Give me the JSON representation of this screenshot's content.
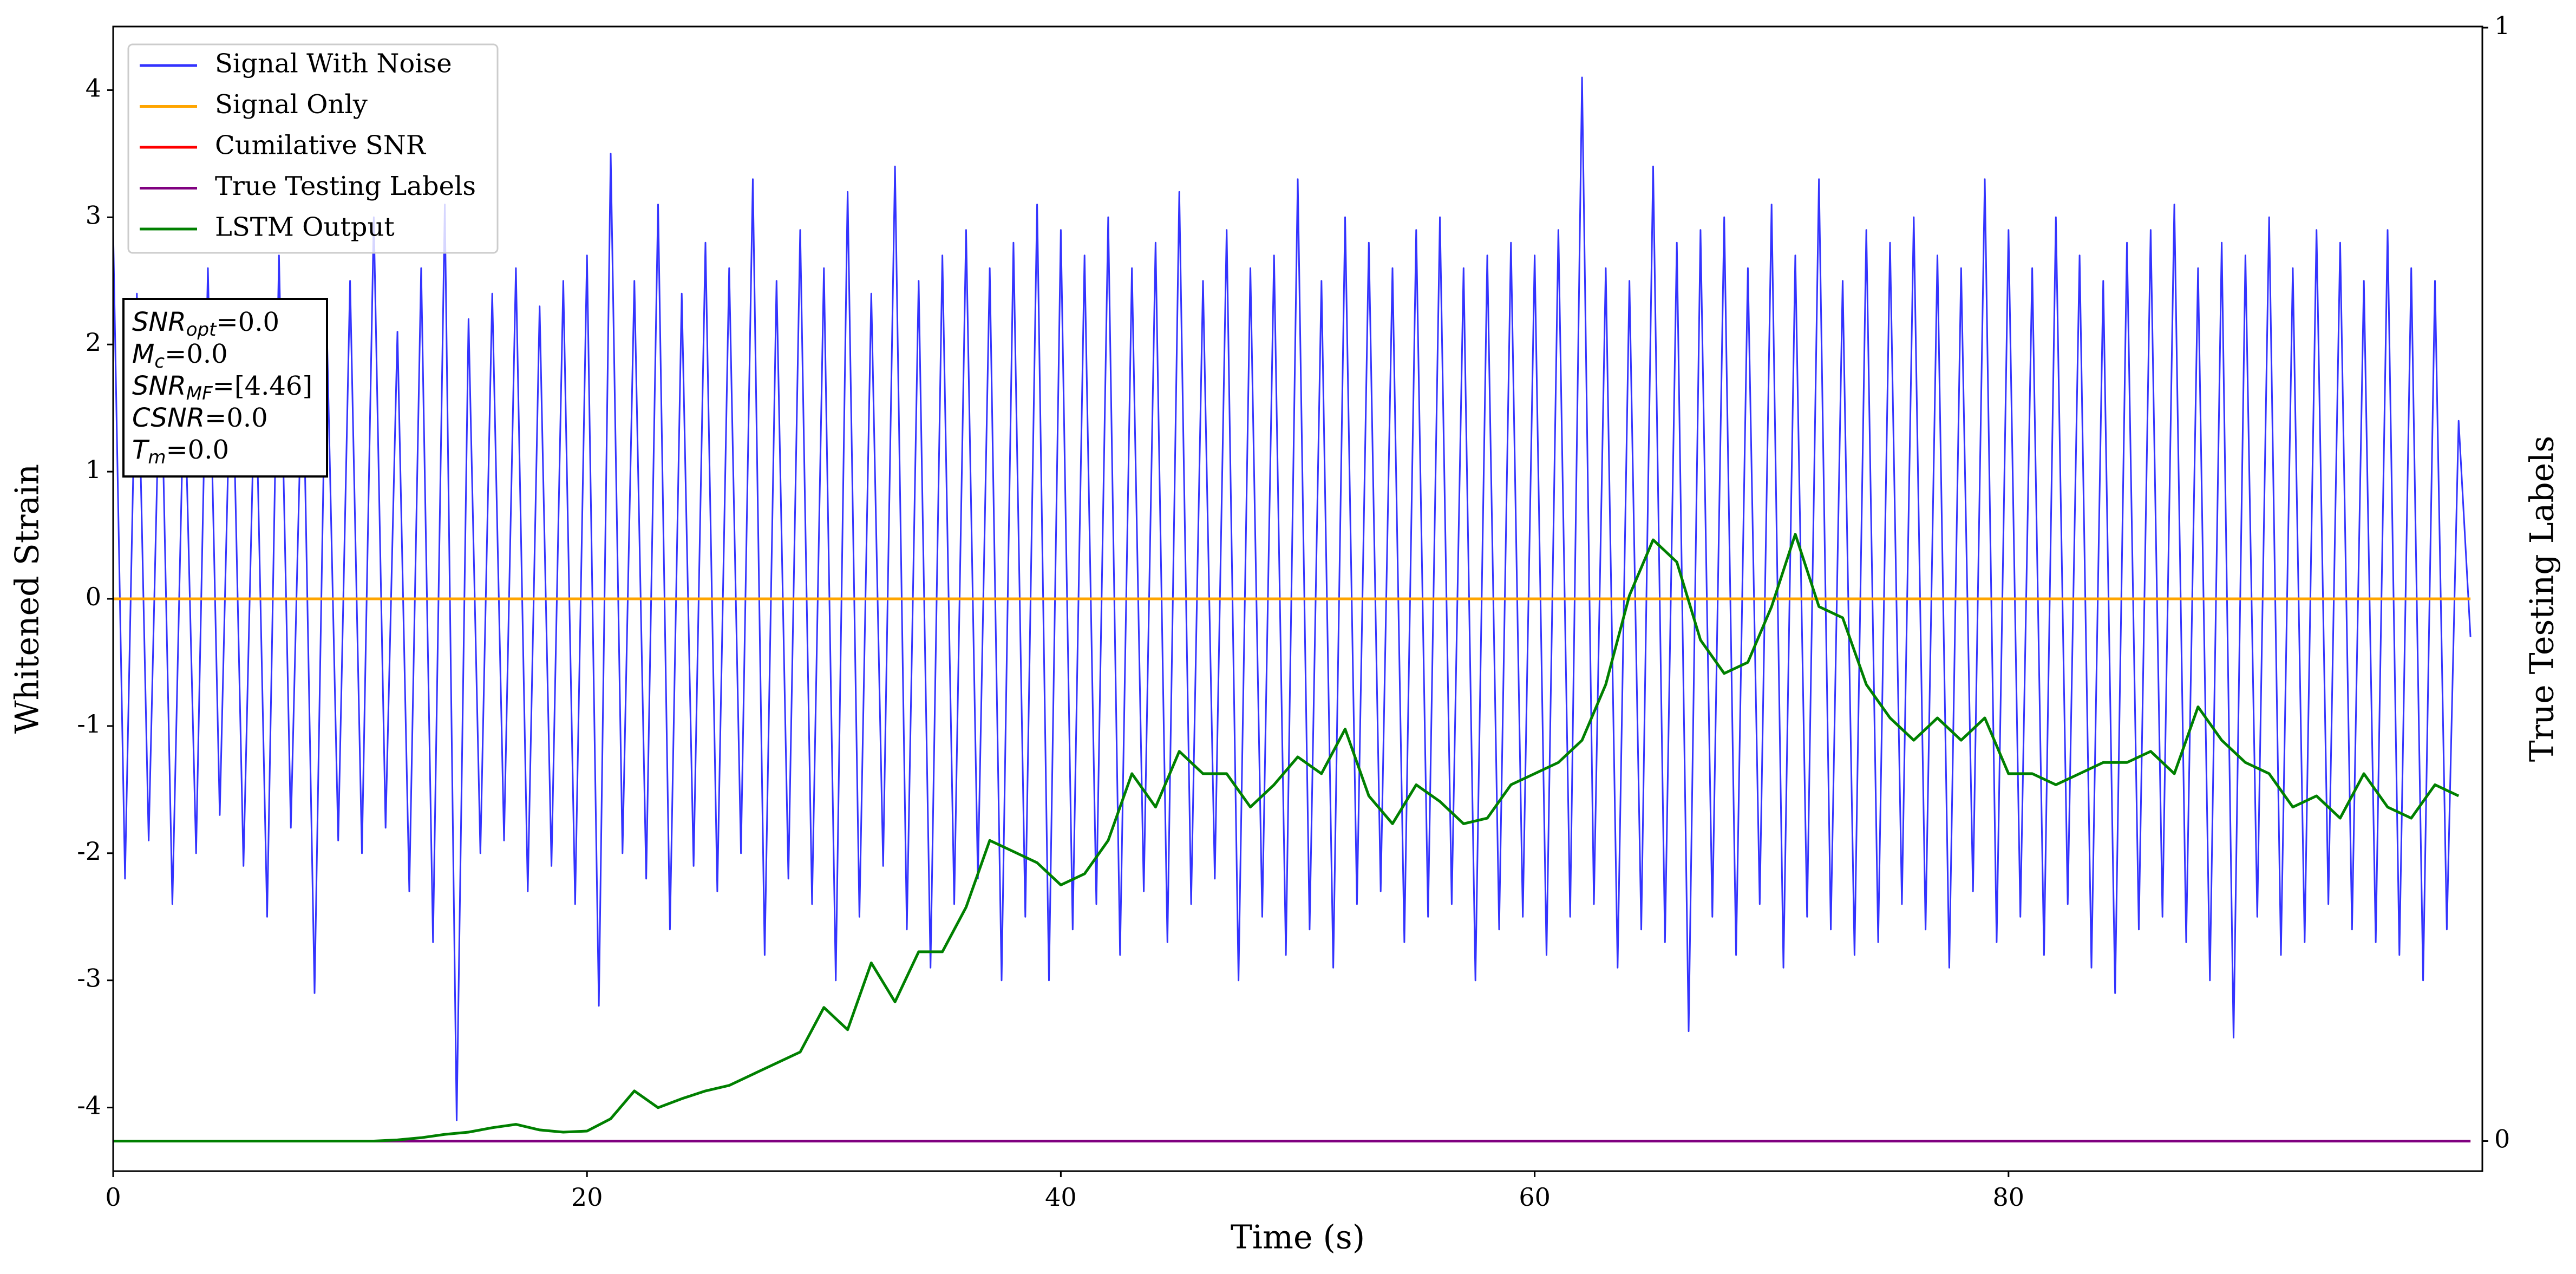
{
  "chart_data": {
    "type": "line",
    "xlabel": "Time (s)",
    "ylabel": "Whitened Strain",
    "y2label": "True Testing Labels",
    "xlim": [
      0,
      100
    ],
    "ylim": [
      -4.5,
      4.5
    ],
    "y2lim": [
      -0.027,
      1.001
    ],
    "xticks": [
      0,
      20,
      40,
      60,
      80
    ],
    "yticks": [
      -4,
      -3,
      -2,
      -1,
      0,
      1,
      2,
      3,
      4
    ],
    "y2ticks": [
      0,
      1
    ],
    "legend": "upper left",
    "annotations": [
      {
        "symbol": "SNR",
        "subscript": "opt",
        "text": "=0.0"
      },
      {
        "symbol": "M",
        "subscript": "c",
        "text": "=0.0"
      },
      {
        "symbol": "SNR",
        "subscript": "MF",
        "text": "=[4.46]"
      },
      {
        "symbol": "CSNR",
        "text": "=0.0"
      },
      {
        "symbol": "T",
        "subscript": "m",
        "text": "=0.0"
      }
    ],
    "series": [
      {
        "name": "Signal With Noise",
        "color": "#3333ff",
        "x": [
          0,
          0.5,
          1,
          1.5,
          2,
          2.5,
          3,
          3.5,
          4,
          4.5,
          5,
          5.5,
          6,
          6.5,
          7,
          7.5,
          8,
          8.5,
          9,
          9.5,
          10,
          10.5,
          11,
          11.5,
          12,
          12.5,
          13,
          13.5,
          14,
          14.5,
          15,
          15.5,
          16,
          16.5,
          17,
          17.5,
          18,
          18.5,
          19,
          19.5,
          20,
          20.5,
          21,
          21.5,
          22,
          22.5,
          23,
          23.5,
          24,
          24.5,
          25,
          25.5,
          26,
          26.5,
          27,
          27.5,
          28,
          28.5,
          29,
          29.5,
          30,
          30.5,
          31,
          31.5,
          32,
          32.5,
          33,
          33.5,
          34,
          34.5,
          35,
          35.5,
          36,
          36.5,
          37,
          37.5,
          38,
          38.5,
          39,
          39.5,
          40,
          40.5,
          41,
          41.5,
          42,
          42.5,
          43,
          43.5,
          44,
          44.5,
          45,
          45.5,
          46,
          46.5,
          47,
          47.5,
          48,
          48.5,
          49,
          49.5,
          50,
          50.5,
          51,
          51.5,
          52,
          52.5,
          53,
          53.5,
          54,
          54.5,
          55,
          55.5,
          56,
          56.5,
          57,
          57.5,
          58,
          58.5,
          59,
          59.5,
          60,
          60.5,
          61,
          61.5,
          62,
          62.5,
          63,
          63.5,
          64,
          64.5,
          65,
          65.5,
          66,
          66.5,
          67,
          67.5,
          68,
          68.5,
          69,
          69.5,
          70,
          70.5,
          71,
          71.5,
          72,
          72.5,
          73,
          73.5,
          74,
          74.5,
          75,
          75.5,
          76,
          76.5,
          77,
          77.5,
          78,
          78.5,
          79,
          79.5,
          80,
          80.5,
          81,
          81.5,
          82,
          82.5,
          83,
          83.5,
          84,
          84.5,
          85,
          85.5,
          86,
          86.5,
          87,
          87.5,
          88,
          88.5,
          89,
          89.5,
          90,
          90.5,
          91,
          91.5,
          92,
          92.5,
          93,
          93.5,
          94,
          94.5,
          95,
          95.5,
          96,
          96.5,
          97,
          97.5,
          98,
          98.5,
          99,
          99.5
        ],
        "values": [
          2.9,
          -2.2,
          2.4,
          -1.9,
          2.1,
          -2.4,
          1.8,
          -2.0,
          2.6,
          -1.7,
          2.2,
          -2.1,
          1.9,
          -2.5,
          2.7,
          -1.8,
          2.0,
          -3.1,
          2.3,
          -1.9,
          2.5,
          -2.0,
          3.0,
          -1.8,
          2.1,
          -2.3,
          2.6,
          -2.7,
          3.1,
          -4.1,
          2.2,
          -2.0,
          2.4,
          -1.9,
          2.6,
          -2.3,
          2.3,
          -2.1,
          2.5,
          -2.4,
          2.7,
          -3.2,
          3.5,
          -2.0,
          2.5,
          -2.2,
          3.1,
          -2.6,
          2.4,
          -2.1,
          2.8,
          -2.3,
          2.6,
          -2.0,
          3.3,
          -2.8,
          2.5,
          -2.2,
          2.9,
          -2.4,
          2.6,
          -3.0,
          3.2,
          -2.5,
          2.4,
          -2.1,
          3.4,
          -2.6,
          2.5,
          -2.9,
          2.7,
          -2.4,
          2.9,
          -2.2,
          2.6,
          -3.0,
          2.8,
          -2.5,
          3.1,
          -3.0,
          2.9,
          -2.6,
          2.7,
          -2.4,
          3.0,
          -2.8,
          2.6,
          -2.3,
          2.8,
          -2.7,
          3.2,
          -2.4,
          2.5,
          -2.2,
          2.9,
          -3.0,
          2.6,
          -2.5,
          2.7,
          -2.8,
          3.3,
          -2.6,
          2.5,
          -2.9,
          3.0,
          -2.4,
          2.8,
          -2.3,
          2.6,
          -2.7,
          2.9,
          -2.5,
          3.0,
          -2.4,
          2.6,
          -3.0,
          2.7,
          -2.6,
          2.8,
          -2.5,
          2.7,
          -2.8,
          2.9,
          -2.5,
          4.1,
          -2.4,
          2.6,
          -2.9,
          2.5,
          -2.6,
          3.4,
          -2.7,
          2.8,
          -3.4,
          2.9,
          -2.5,
          3.0,
          -2.8,
          2.6,
          -2.4,
          3.1,
          -2.9,
          2.7,
          -2.5,
          3.3,
          -2.6,
          2.5,
          -2.8,
          2.9,
          -2.7,
          2.8,
          -2.4,
          3.0,
          -2.6,
          2.7,
          -2.9,
          2.6,
          -2.3,
          3.3,
          -2.7,
          2.9,
          -2.5,
          2.6,
          -2.8,
          3.0,
          -2.4,
          2.7,
          -2.9,
          2.5,
          -3.1,
          2.8,
          -2.6,
          2.9,
          -2.5,
          3.1,
          -2.7,
          2.6,
          -3.0,
          2.8,
          -3.45,
          2.7,
          -2.5,
          3.0,
          -2.8,
          2.6,
          -2.7,
          2.9,
          -2.4,
          2.8,
          -2.6,
          2.5,
          -2.7,
          2.9,
          -2.8,
          2.6,
          -3.0,
          2.5,
          -2.6,
          1.4,
          -0.3
        ]
      },
      {
        "name": "Signal Only",
        "color": "#ffa500",
        "x": [
          0,
          99.5
        ],
        "values": [
          0,
          0
        ]
      },
      {
        "name": "Cumilative SNR",
        "color": "#ff0000",
        "axis": "y2",
        "x": [
          0,
          99.5
        ],
        "values": [
          0,
          0
        ]
      },
      {
        "name": "True Testing Labels",
        "color": "#800080",
        "axis": "y2",
        "x": [
          0,
          99.5
        ],
        "values": [
          0,
          0
        ]
      },
      {
        "name": "LSTM Output",
        "color": "#008000",
        "axis": "y2",
        "x": [
          0,
          1,
          2,
          3,
          4,
          5,
          6,
          7,
          8,
          9,
          10,
          11,
          12,
          13,
          14,
          15,
          16,
          17,
          18,
          19,
          20,
          21,
          22,
          23,
          24,
          25,
          26,
          27,
          28,
          29,
          30,
          31,
          32,
          33,
          34,
          35,
          36,
          37,
          38,
          39,
          40,
          41,
          42,
          43,
          44,
          45,
          46,
          47,
          48,
          49,
          50,
          51,
          52,
          53,
          54,
          55,
          56,
          57,
          58,
          59,
          60,
          61,
          62,
          63,
          64,
          65,
          66,
          67,
          68,
          69,
          70,
          71,
          72,
          73,
          74,
          75,
          76,
          77,
          78,
          79,
          80,
          81,
          82,
          83,
          84,
          85,
          86,
          87,
          88,
          89,
          90,
          91,
          92,
          93,
          94,
          95,
          96,
          97,
          98,
          99
        ],
        "values": [
          0,
          0,
          0,
          0,
          0,
          0,
          0,
          0,
          0,
          0,
          0,
          0,
          0.001,
          0.003,
          0.006,
          0.008,
          0.012,
          0.015,
          0.01,
          0.008,
          0.009,
          0.02,
          0.045,
          0.03,
          0.038,
          0.045,
          0.05,
          0.06,
          0.07,
          0.08,
          0.12,
          0.1,
          0.16,
          0.125,
          0.17,
          0.17,
          0.21,
          0.27,
          0.26,
          0.25,
          0.23,
          0.24,
          0.27,
          0.33,
          0.3,
          0.35,
          0.33,
          0.33,
          0.3,
          0.32,
          0.345,
          0.33,
          0.37,
          0.31,
          0.285,
          0.32,
          0.305,
          0.285,
          0.29,
          0.32,
          0.33,
          0.34,
          0.36,
          0.41,
          0.49,
          0.54,
          0.52,
          0.45,
          0.42,
          0.43,
          0.48,
          0.545,
          0.48,
          0.47,
          0.41,
          0.38,
          0.36,
          0.38,
          0.36,
          0.38,
          0.33,
          0.33,
          0.32,
          0.33,
          0.34,
          0.34,
          0.35,
          0.33,
          0.39,
          0.36,
          0.34,
          0.33,
          0.3,
          0.31,
          0.29,
          0.33,
          0.3,
          0.29,
          0.32,
          0.31
        ]
      }
    ]
  }
}
